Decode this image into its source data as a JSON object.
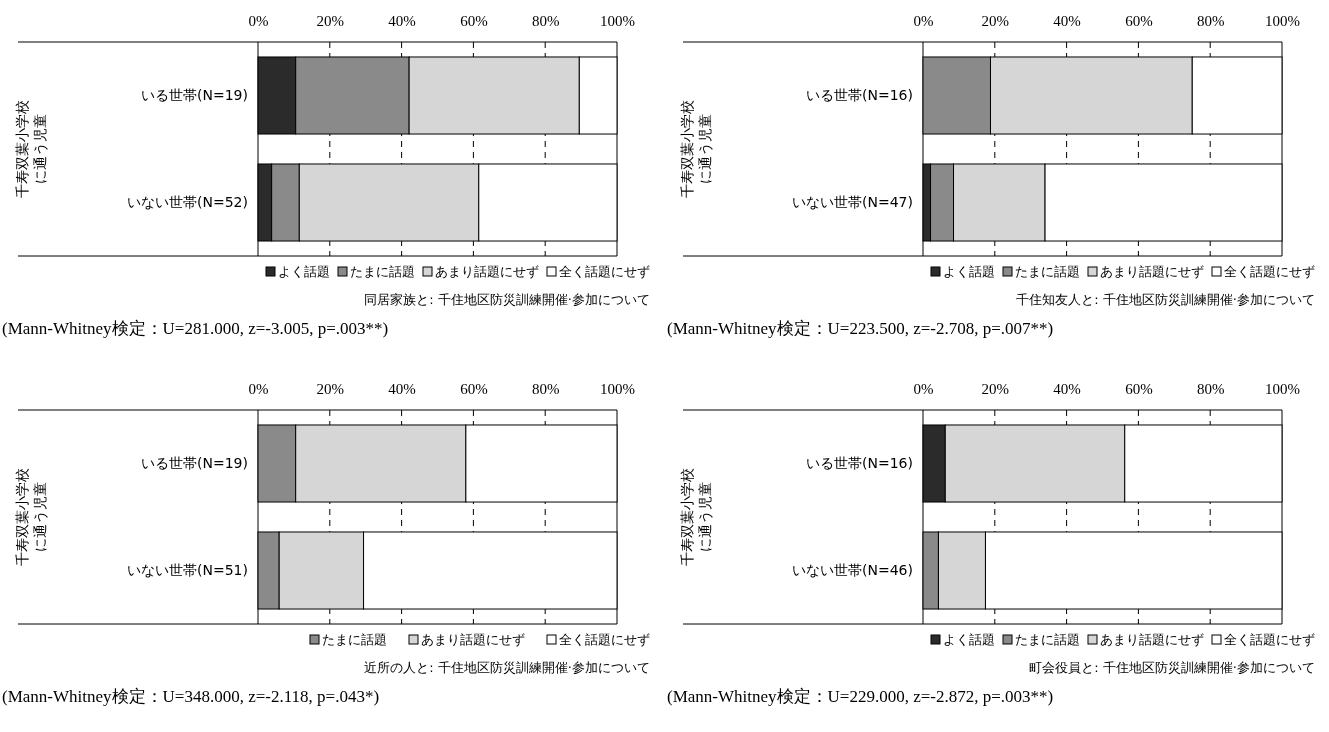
{
  "chart_data": [
    {
      "type": "bar",
      "orientation": "horizontal",
      "stacked": true,
      "title": "同居家族と: 千住地区防災訓練開催·参加について",
      "ylabel": "千寿双葉小学校に通う児童",
      "categories": [
        "いる世帯(N=19)",
        "いない世帯(N=52)"
      ],
      "xlim": [
        0,
        100
      ],
      "xticks": [
        {
          "value": 0,
          "label": "0%"
        },
        {
          "value": 20,
          "label": "20%"
        },
        {
          "value": 40,
          "label": "40%"
        },
        {
          "value": 60,
          "label": "60%"
        },
        {
          "value": 80,
          "label": "80%"
        },
        {
          "value": 100,
          "label": "100%"
        }
      ],
      "grid": "x",
      "legend": "bottom",
      "annotations": [
        "(Mann-Whitney検定：U=281.000, z=-3.005, p=.003**)"
      ],
      "series": [
        {
          "name": "よく話題",
          "color": "#2b2b2b",
          "values": [
            10.5,
            3.8
          ]
        },
        {
          "name": "たまに話題",
          "color": "#8a8a8a",
          "values": [
            31.6,
            7.7
          ]
        },
        {
          "name": "あまり話題にせず",
          "color": "#d6d6d6",
          "values": [
            47.4,
            50.0
          ]
        },
        {
          "name": "全く話題にせず",
          "color": "#ffffff",
          "values": [
            10.5,
            38.5
          ]
        }
      ]
    },
    {
      "type": "bar",
      "orientation": "horizontal",
      "stacked": true,
      "title": "千住知友人と: 千住地区防災訓練開催·参加について",
      "ylabel": "千寿双葉小学校に通う児童",
      "categories": [
        "いる世帯(N=16)",
        "いない世帯(N=47)"
      ],
      "xlim": [
        0,
        100
      ],
      "xticks": [
        {
          "value": 0,
          "label": "0%"
        },
        {
          "value": 20,
          "label": "20%"
        },
        {
          "value": 40,
          "label": "40%"
        },
        {
          "value": 60,
          "label": "60%"
        },
        {
          "value": 80,
          "label": "80%"
        },
        {
          "value": 100,
          "label": "100%"
        }
      ],
      "grid": "x",
      "legend": "bottom",
      "annotations": [
        "(Mann-Whitney検定：U=223.500, z=-2.708, p=.007**)"
      ],
      "series": [
        {
          "name": "よく話題",
          "color": "#2b2b2b",
          "values": [
            0,
            2.1
          ]
        },
        {
          "name": "たまに話題",
          "color": "#8a8a8a",
          "values": [
            18.8,
            6.4
          ]
        },
        {
          "name": "あまり話題にせず",
          "color": "#d6d6d6",
          "values": [
            56.2,
            25.5
          ]
        },
        {
          "name": "全く話題にせず",
          "color": "#ffffff",
          "values": [
            25.0,
            66.0
          ]
        }
      ]
    },
    {
      "type": "bar",
      "orientation": "horizontal",
      "stacked": true,
      "title": "近所の人と: 千住地区防災訓練開催·参加について",
      "ylabel": "千寿双葉小学校に通う児童",
      "categories": [
        "いる世帯(N=19)",
        "いない世帯(N=51)"
      ],
      "xlim": [
        0,
        100
      ],
      "xticks": [
        {
          "value": 0,
          "label": "0%"
        },
        {
          "value": 20,
          "label": "20%"
        },
        {
          "value": 40,
          "label": "40%"
        },
        {
          "value": 60,
          "label": "60%"
        },
        {
          "value": 80,
          "label": "80%"
        },
        {
          "value": 100,
          "label": "100%"
        }
      ],
      "grid": "x",
      "legend": "bottom",
      "annotations": [
        "(Mann-Whitney検定：U=348.000, z=-2.118, p=.043*)"
      ],
      "series": [
        {
          "name": "たまに話題",
          "color": "#8a8a8a",
          "values": [
            10.5,
            5.9
          ]
        },
        {
          "name": "あまり話題にせず",
          "color": "#d6d6d6",
          "values": [
            47.4,
            23.5
          ]
        },
        {
          "name": "全く話題にせず",
          "color": "#ffffff",
          "values": [
            42.1,
            70.6
          ]
        }
      ]
    },
    {
      "type": "bar",
      "orientation": "horizontal",
      "stacked": true,
      "title": "町会役員と: 千住地区防災訓練開催·参加について",
      "ylabel": "千寿双葉小学校に通う児童",
      "categories": [
        "いる世帯(N=16)",
        "いない世帯(N=46)"
      ],
      "xlim": [
        0,
        100
      ],
      "xticks": [
        {
          "value": 0,
          "label": "0%"
        },
        {
          "value": 20,
          "label": "20%"
        },
        {
          "value": 40,
          "label": "40%"
        },
        {
          "value": 60,
          "label": "60%"
        },
        {
          "value": 80,
          "label": "80%"
        },
        {
          "value": 100,
          "label": "100%"
        }
      ],
      "grid": "x",
      "legend": "bottom",
      "annotations": [
        "(Mann-Whitney検定：U=229.000, z=-2.872, p=.003**)"
      ],
      "series": [
        {
          "name": "よく話題",
          "color": "#2b2b2b",
          "values": [
            6.2,
            0
          ]
        },
        {
          "name": "たまに話題",
          "color": "#8a8a8a",
          "values": [
            0,
            4.3
          ]
        },
        {
          "name": "あまり話題にせず",
          "color": "#d6d6d6",
          "values": [
            50.0,
            13.1
          ]
        },
        {
          "name": "全く話題にせず",
          "color": "#ffffff",
          "values": [
            43.8,
            82.6
          ]
        }
      ]
    }
  ]
}
